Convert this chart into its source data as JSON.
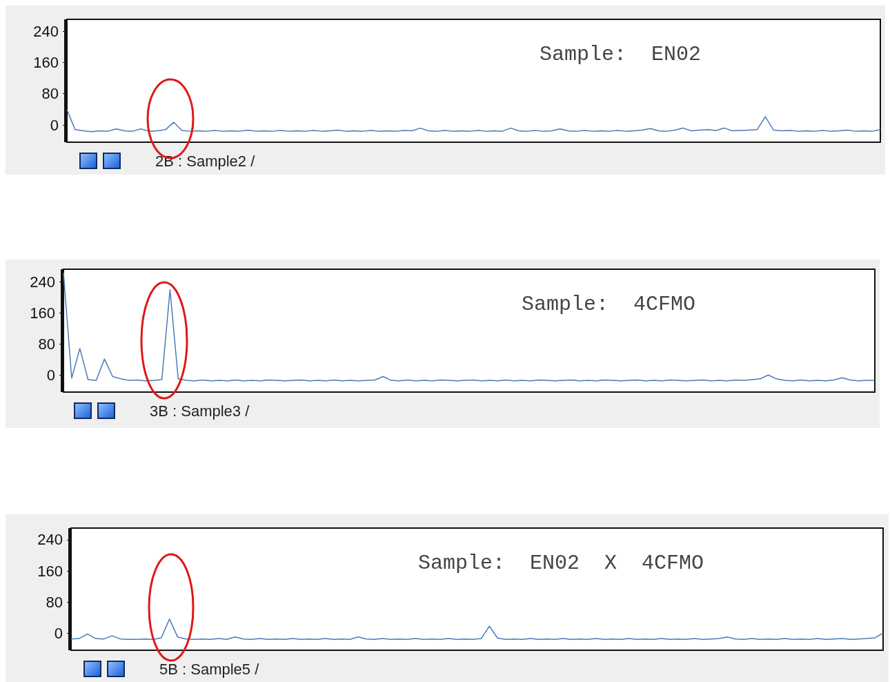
{
  "chart_data": [
    {
      "type": "line",
      "marker": "none",
      "tick_labels": "y",
      "ylim": [
        -44,
        270
      ],
      "yticks": [
        0,
        80,
        160,
        240
      ],
      "annotations": [
        "Sample:  EN02",
        "2B : Sample2 /"
      ],
      "categories": [
        null,
        null,
        null,
        null,
        null,
        null,
        null,
        null,
        null,
        null,
        null,
        null,
        null,
        null,
        null,
        null,
        null,
        null,
        null,
        null,
        null,
        null,
        null,
        null,
        null,
        null,
        null,
        null,
        null,
        null,
        null,
        null,
        null,
        null,
        null,
        null,
        null,
        null,
        null,
        null,
        null,
        null,
        null,
        null,
        null,
        null,
        null,
        null,
        null,
        null,
        null,
        null,
        null,
        null,
        null,
        null,
        null,
        null,
        null,
        null,
        null,
        null,
        null,
        null,
        null,
        null,
        null,
        null,
        null,
        null,
        null,
        null,
        null,
        null,
        null,
        null,
        null,
        null,
        null,
        null,
        null,
        null,
        null,
        null,
        null,
        null,
        null,
        null,
        null,
        null,
        null,
        null,
        null,
        null,
        null,
        null,
        null,
        null,
        null,
        null
      ],
      "series": [
        {
          "color": "#4a7ab8",
          "values": [
            39,
            -12,
            -15,
            -17,
            -15,
            -16,
            -10,
            -15,
            -16,
            -10,
            -16,
            -15,
            -12,
            7,
            -14,
            -16,
            -15,
            -16,
            -14,
            -16,
            -15,
            -16,
            -13,
            -16,
            -15,
            -16,
            -14,
            -16,
            -15,
            -16,
            -14,
            -16,
            -15,
            -13,
            -16,
            -15,
            -16,
            -14,
            -16,
            -15,
            -16,
            -14,
            -15,
            -8,
            -15,
            -16,
            -14,
            -16,
            -15,
            -16,
            -14,
            -16,
            -15,
            -16,
            -8,
            -15,
            -16,
            -14,
            -16,
            -15,
            -10,
            -15,
            -16,
            -14,
            -16,
            -15,
            -16,
            -14,
            -16,
            -15,
            -13,
            -9,
            -15,
            -16,
            -13,
            -8,
            -15,
            -13,
            -12,
            -14,
            -8,
            -15,
            -14,
            -13,
            -12,
            21,
            -13,
            -15,
            -14,
            -16,
            -15,
            -16,
            -14,
            -16,
            -15,
            -13,
            -16,
            -15,
            -16,
            -12
          ]
        }
      ]
    },
    {
      "type": "line",
      "marker": "none",
      "tick_labels": "y",
      "ylim": [
        -44,
        272
      ],
      "yticks": [
        0,
        80,
        160,
        240
      ],
      "annotations": [
        "Sample:  4CFMO",
        "3B : Sample3 /"
      ],
      "categories": [
        null,
        null,
        null,
        null,
        null,
        null,
        null,
        null,
        null,
        null,
        null,
        null,
        null,
        null,
        null,
        null,
        null,
        null,
        null,
        null,
        null,
        null,
        null,
        null,
        null,
        null,
        null,
        null,
        null,
        null,
        null,
        null,
        null,
        null,
        null,
        null,
        null,
        null,
        null,
        null,
        null,
        null,
        null,
        null,
        null,
        null,
        null,
        null,
        null,
        null,
        null,
        null,
        null,
        null,
        null,
        null,
        null,
        null,
        null,
        null,
        null,
        null,
        null,
        null,
        null,
        null,
        null,
        null,
        null,
        null,
        null,
        null,
        null,
        null,
        null,
        null,
        null,
        null,
        null,
        null,
        null,
        null,
        null,
        null,
        null,
        null,
        null,
        null,
        null,
        null,
        null,
        null,
        null,
        null,
        null,
        null,
        null,
        null,
        null,
        null
      ],
      "series": [
        {
          "color": "#4a7ab8",
          "values": [
            263,
            -8,
            68,
            -12,
            -14,
            41,
            -4,
            -10,
            -14,
            -13,
            -15,
            -14,
            -12,
            219,
            -10,
            -14,
            -15,
            -13,
            -15,
            -14,
            -15,
            -13,
            -15,
            -14,
            -15,
            -13,
            -14,
            -15,
            -14,
            -13,
            -15,
            -14,
            -15,
            -13,
            -15,
            -14,
            -15,
            -14,
            -13,
            -4,
            -14,
            -15,
            -13,
            -15,
            -14,
            -15,
            -13,
            -14,
            -15,
            -14,
            -13,
            -15,
            -14,
            -15,
            -13,
            -15,
            -14,
            -15,
            -13,
            -14,
            -15,
            -14,
            -13,
            -15,
            -14,
            -15,
            -13,
            -14,
            -15,
            -14,
            -13,
            -15,
            -14,
            -15,
            -13,
            -14,
            -15,
            -14,
            -13,
            -15,
            -14,
            -15,
            -13,
            -14,
            -12,
            -10,
            0,
            -10,
            -14,
            -15,
            -13,
            -15,
            -14,
            -15,
            -13,
            -7,
            -13,
            -15,
            -14,
            -14
          ]
        }
      ]
    },
    {
      "type": "line",
      "marker": "none",
      "tick_labels": "y",
      "ylim": [
        -44,
        270
      ],
      "yticks": [
        0,
        80,
        160,
        240
      ],
      "annotations": [
        "Sample:  EN02  X  4CFMO",
        "5B : Sample5 /"
      ],
      "categories": [
        null,
        null,
        null,
        null,
        null,
        null,
        null,
        null,
        null,
        null,
        null,
        null,
        null,
        null,
        null,
        null,
        null,
        null,
        null,
        null,
        null,
        null,
        null,
        null,
        null,
        null,
        null,
        null,
        null,
        null,
        null,
        null,
        null,
        null,
        null,
        null,
        null,
        null,
        null,
        null,
        null,
        null,
        null,
        null,
        null,
        null,
        null,
        null,
        null,
        null,
        null,
        null,
        null,
        null,
        null,
        null,
        null,
        null,
        null,
        null,
        null,
        null,
        null,
        null,
        null,
        null,
        null,
        null,
        null,
        null,
        null,
        null,
        null,
        null,
        null,
        null,
        null,
        null,
        null,
        null,
        null,
        null,
        null,
        null,
        null,
        null,
        null,
        null,
        null,
        null,
        null,
        null,
        null,
        null,
        null,
        null,
        null,
        null,
        null,
        null
      ],
      "series": [
        {
          "color": "#4a7ab8",
          "values": [
            -15,
            -14,
            -2,
            -14,
            -15,
            -7,
            -15,
            -16,
            -16,
            -15,
            -16,
            -12,
            36,
            -10,
            -15,
            -16,
            -15,
            -16,
            -14,
            -16,
            -10,
            -15,
            -16,
            -14,
            -16,
            -15,
            -16,
            -14,
            -16,
            -15,
            -16,
            -14,
            -16,
            -15,
            -16,
            -10,
            -15,
            -16,
            -14,
            -16,
            -15,
            -16,
            -14,
            -16,
            -15,
            -16,
            -14,
            -16,
            -15,
            -16,
            -14,
            18,
            -13,
            -16,
            -15,
            -16,
            -14,
            -16,
            -15,
            -16,
            -14,
            -16,
            -15,
            -16,
            -14,
            -16,
            -15,
            -16,
            -14,
            -16,
            -15,
            -16,
            -14,
            -16,
            -15,
            -16,
            -14,
            -16,
            -15,
            -14,
            -10,
            -15,
            -16,
            -14,
            -16,
            -15,
            -16,
            -14,
            -16,
            -15,
            -16,
            -14,
            -16,
            -15,
            -14,
            -16,
            -15,
            -14,
            -12,
            0
          ]
        }
      ]
    }
  ]
}
